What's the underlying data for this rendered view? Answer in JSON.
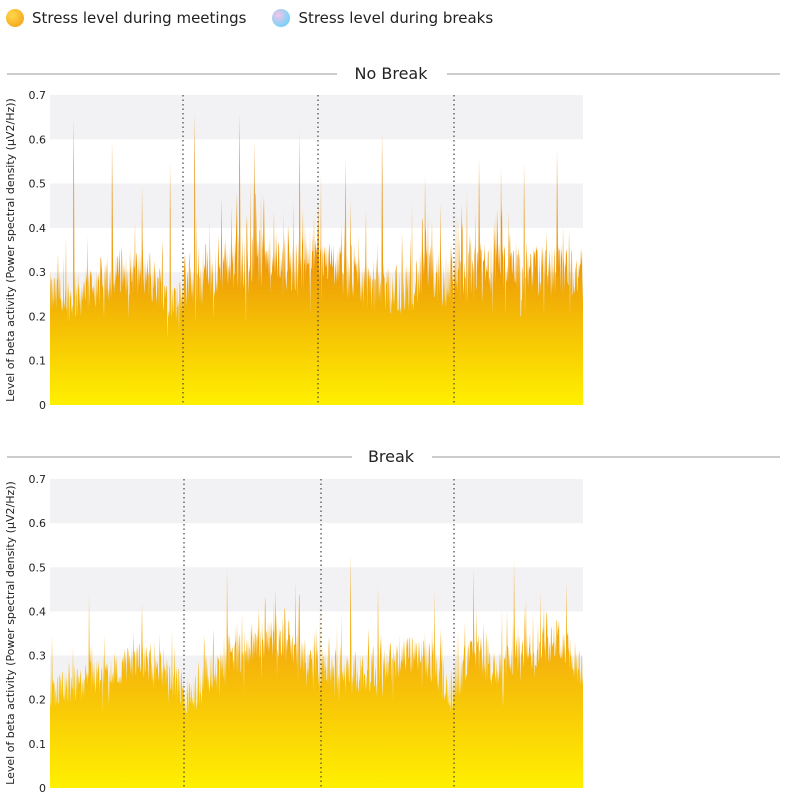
{
  "legend": {
    "items": [
      {
        "label": "Stress level during meetings",
        "color": "#f5a623"
      },
      {
        "label": "Stress level during breaks",
        "color": "#8fd0f5"
      }
    ]
  },
  "colors": {
    "band": "#f2f2f4",
    "separator": "#444444",
    "area_top": "#e8900a",
    "area_bottom": "#fff200",
    "rule": "#999999"
  },
  "chart_data": [
    {
      "type": "area",
      "title": "No Break",
      "ylabel": "Level of beta activity (Power spectral density (µV2/Hz))",
      "ylim": [
        0,
        0.7
      ],
      "yticks": [
        "0",
        "0.1",
        "0.2",
        "0.3",
        "0.4",
        "0.5",
        "0.6",
        "0.7"
      ],
      "meetings": 4,
      "segments": [
        {
          "base": [
            0.25,
            0.24,
            0.27,
            0.3,
            0.3,
            0.27,
            0.22
          ],
          "noise": 0.07,
          "peaks": [
            0.65,
            0.6,
            0.5,
            0.55
          ],
          "low": 0.15
        },
        {
          "base": [
            0.26,
            0.3,
            0.33,
            0.32,
            0.32,
            0.31,
            0.33
          ],
          "noise": 0.09,
          "peaks": [
            0.66,
            0.66,
            0.6,
            0.62
          ],
          "low": 0.18
        },
        {
          "base": [
            0.34,
            0.3,
            0.28,
            0.26,
            0.27,
            0.3,
            0.26
          ],
          "noise": 0.08,
          "peaks": [
            0.56,
            0.62,
            0.52
          ],
          "low": 0.16
        },
        {
          "base": [
            0.28,
            0.3,
            0.32,
            0.31,
            0.3,
            0.31,
            0.29
          ],
          "noise": 0.08,
          "peaks": [
            0.56,
            0.54,
            0.55,
            0.58
          ],
          "low": 0.2
        }
      ]
    },
    {
      "type": "area",
      "title": "Break",
      "ylabel": "Level of beta activity (Power spectral density (µV2/Hz))",
      "ylim": [
        0,
        0.7
      ],
      "yticks": [
        "0",
        "0.1",
        "0.2",
        "0.3",
        "0.4",
        "0.5",
        "0.6",
        "0.7"
      ],
      "meetings": 4,
      "segments": [
        {
          "base": [
            0.22,
            0.23,
            0.25,
            0.27,
            0.29,
            0.27,
            0.22
          ],
          "noise": 0.05,
          "peaks": [
            0.44,
            0.42
          ],
          "low": 0.17
        },
        {
          "base": [
            0.2,
            0.24,
            0.29,
            0.33,
            0.34,
            0.32,
            0.27
          ],
          "noise": 0.06,
          "peaks": [
            0.5,
            0.47
          ],
          "low": 0.17
        },
        {
          "base": [
            0.28,
            0.25,
            0.26,
            0.28,
            0.3,
            0.28,
            0.22
          ],
          "noise": 0.06,
          "peaks": [
            0.53,
            0.46,
            0.45
          ],
          "low": 0.17
        },
        {
          "base": [
            0.24,
            0.31,
            0.26,
            0.3,
            0.32,
            0.34,
            0.26
          ],
          "noise": 0.06,
          "peaks": [
            0.5,
            0.52,
            0.47
          ],
          "low": 0.18
        }
      ]
    }
  ]
}
